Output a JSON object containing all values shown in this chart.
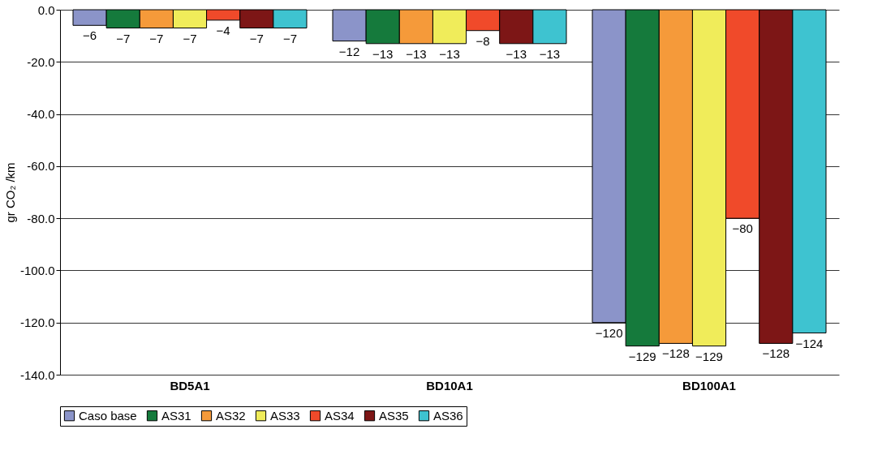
{
  "chart_data": {
    "type": "bar",
    "ylabel": "gr CO₂ /km",
    "categories": [
      "BD5A1",
      "BD10A1",
      "BD100A1"
    ],
    "series": [
      {
        "name": "Caso base",
        "color": "#8b94c9",
        "values": [
          -6,
          -12,
          -120
        ]
      },
      {
        "name": "AS31",
        "color": "#157a3c",
        "values": [
          -7,
          -13,
          -129
        ]
      },
      {
        "name": "AS32",
        "color": "#f59a3a",
        "values": [
          -7,
          -13,
          -128
        ]
      },
      {
        "name": "AS33",
        "color": "#f0ec5a",
        "values": [
          -7,
          -13,
          -129
        ]
      },
      {
        "name": "AS34",
        "color": "#f04a2a",
        "values": [
          -4,
          -8,
          -80
        ]
      },
      {
        "name": "AS35",
        "color": "#7d1616",
        "values": [
          -7,
          -13,
          -128
        ]
      },
      {
        "name": "AS36",
        "color": "#3ec3d0",
        "values": [
          -7,
          -13,
          -124
        ]
      }
    ],
    "ylim": [
      -140,
      0
    ],
    "yticks": [
      {
        "value": -140,
        "label": "-140.0"
      },
      {
        "value": -120,
        "label": "-120.0"
      },
      {
        "value": -100,
        "label": "-100.0"
      },
      {
        "value": -80,
        "label": "-80.0"
      },
      {
        "value": -60,
        "label": "-60.0"
      },
      {
        "value": -40,
        "label": "-40.0"
      },
      {
        "value": -20,
        "label": "-20.0"
      },
      {
        "value": 0,
        "label": "0.0"
      }
    ],
    "grid": "y",
    "legend": "bottom",
    "data_labels": true
  }
}
